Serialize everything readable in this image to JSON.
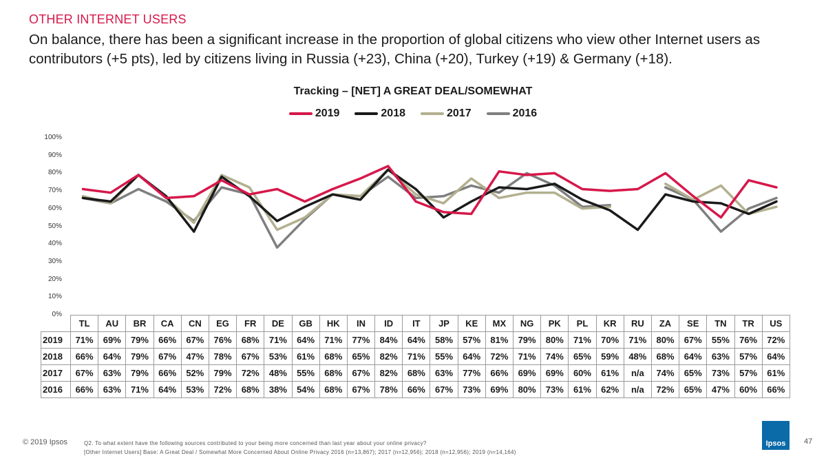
{
  "section_label": "OTHER INTERNET USERS",
  "headline": "On balance, there has been a significant increase in the proportion of global citizens who view other Internet users as contributors (+5 pts), led by citizens living in Russia (+23), China (+20), Turkey (+19) & Germany (+18).",
  "chart_data": {
    "type": "line",
    "title": "Tracking – [NET] A GREAT DEAL/SOMEWHAT",
    "categories": [
      "TL",
      "AU",
      "BR",
      "CA",
      "CN",
      "EG",
      "FR",
      "DE",
      "GB",
      "HK",
      "IN",
      "ID",
      "IT",
      "JP",
      "KE",
      "MX",
      "NG",
      "PK",
      "PL",
      "KR",
      "RU",
      "ZA",
      "SE",
      "TN",
      "TR",
      "US"
    ],
    "ylim": [
      0,
      100
    ],
    "yticks": [
      "0%",
      "10%",
      "20%",
      "30%",
      "40%",
      "50%",
      "60%",
      "70%",
      "80%",
      "90%",
      "100%"
    ],
    "series": [
      {
        "name": "2019",
        "color": "#d6184a",
        "values": [
          71,
          69,
          79,
          66,
          67,
          76,
          68,
          71,
          64,
          71,
          77,
          84,
          64,
          58,
          57,
          81,
          79,
          80,
          71,
          70,
          71,
          80,
          67,
          55,
          76,
          72
        ],
        "labels": [
          "71%",
          "69%",
          "79%",
          "66%",
          "67%",
          "76%",
          "68%",
          "71%",
          "64%",
          "71%",
          "77%",
          "84%",
          "64%",
          "58%",
          "57%",
          "81%",
          "79%",
          "80%",
          "71%",
          "70%",
          "71%",
          "80%",
          "67%",
          "55%",
          "76%",
          "72%"
        ]
      },
      {
        "name": "2018",
        "color": "#1a1a1a",
        "values": [
          66,
          64,
          79,
          67,
          47,
          78,
          67,
          53,
          61,
          68,
          65,
          82,
          71,
          55,
          64,
          72,
          71,
          74,
          65,
          59,
          48,
          68,
          64,
          63,
          57,
          64
        ],
        "labels": [
          "66%",
          "64%",
          "79%",
          "67%",
          "47%",
          "78%",
          "67%",
          "53%",
          "61%",
          "68%",
          "65%",
          "82%",
          "71%",
          "55%",
          "64%",
          "72%",
          "71%",
          "74%",
          "65%",
          "59%",
          "48%",
          "68%",
          "64%",
          "63%",
          "57%",
          "64%"
        ]
      },
      {
        "name": "2017",
        "color": "#b3b08f",
        "values": [
          67,
          63,
          79,
          66,
          52,
          79,
          72,
          48,
          55,
          68,
          67,
          82,
          68,
          63,
          77,
          66,
          69,
          69,
          60,
          61,
          null,
          74,
          65,
          73,
          57,
          61
        ],
        "labels": [
          "67%",
          "63%",
          "79%",
          "66%",
          "52%",
          "79%",
          "72%",
          "48%",
          "55%",
          "68%",
          "67%",
          "82%",
          "68%",
          "63%",
          "77%",
          "66%",
          "69%",
          "69%",
          "60%",
          "61%",
          "n/a",
          "74%",
          "65%",
          "73%",
          "57%",
          "61%"
        ]
      },
      {
        "name": "2016",
        "color": "#7f7f7f",
        "values": [
          66,
          63,
          71,
          64,
          53,
          72,
          68,
          38,
          54,
          68,
          67,
          78,
          66,
          67,
          73,
          69,
          80,
          73,
          61,
          62,
          null,
          72,
          65,
          47,
          60,
          66
        ],
        "labels": [
          "66%",
          "63%",
          "71%",
          "64%",
          "53%",
          "72%",
          "68%",
          "38%",
          "54%",
          "68%",
          "67%",
          "78%",
          "66%",
          "67%",
          "73%",
          "69%",
          "80%",
          "73%",
          "61%",
          "62%",
          "n/a",
          "72%",
          "65%",
          "47%",
          "60%",
          "66%"
        ]
      }
    ]
  },
  "footer": {
    "copyright": "© 2019 Ipsos",
    "footnote_line1": "Q2. To what extent have the following sources contributed to your being more concerned than last year about your online privacy?",
    "footnote_line2": "[Other Internet Users] Base: A Great Deal / Somewhat More Concerned About Online Privacy 2016 (n=13,867); 2017 (n=12,956); 2018 (n=12,956); 2019 (n=14,164)",
    "logo_text": "Ipsos",
    "page_number": "47"
  }
}
